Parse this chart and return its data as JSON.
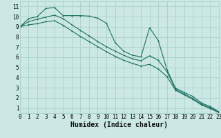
{
  "xlabel": "Humidex (Indice chaleur)",
  "background_color": "#cce8e4",
  "grid_color": "#aacfcb",
  "line_color": "#1a7060",
  "x_values": [
    0,
    1,
    2,
    3,
    4,
    5,
    6,
    7,
    8,
    9,
    10,
    11,
    12,
    13,
    14,
    15,
    16,
    17,
    18,
    19,
    20,
    21,
    22,
    23
  ],
  "line1": [
    9.0,
    9.8,
    10.0,
    10.8,
    10.9,
    10.1,
    10.1,
    10.1,
    10.05,
    9.85,
    9.35,
    7.45,
    6.6,
    6.2,
    6.05,
    8.9,
    7.65,
    4.8,
    2.95,
    2.55,
    2.15,
    1.5,
    1.15,
    0.65
  ],
  "line2": [
    9.0,
    9.5,
    9.75,
    9.95,
    10.15,
    9.8,
    9.2,
    8.65,
    8.1,
    7.55,
    7.05,
    6.6,
    6.2,
    5.85,
    5.65,
    6.15,
    5.7,
    4.6,
    2.85,
    2.4,
    1.95,
    1.4,
    1.05,
    0.6
  ],
  "line3": [
    9.0,
    9.2,
    9.3,
    9.5,
    9.6,
    9.15,
    8.6,
    8.05,
    7.55,
    7.05,
    6.55,
    6.1,
    5.7,
    5.4,
    5.15,
    5.3,
    4.85,
    4.1,
    2.75,
    2.3,
    1.85,
    1.3,
    0.95,
    0.55
  ],
  "xlim": [
    0,
    23
  ],
  "ylim": [
    0.5,
    11.5
  ],
  "yticks": [
    1,
    2,
    3,
    4,
    5,
    6,
    7,
    8,
    9,
    10,
    11
  ],
  "xticks": [
    0,
    1,
    2,
    3,
    4,
    5,
    6,
    7,
    8,
    9,
    10,
    11,
    12,
    13,
    14,
    15,
    16,
    17,
    18,
    19,
    20,
    21,
    22,
    23
  ],
  "xlabel_fontsize": 7,
  "tick_fontsize": 5.5,
  "linewidth": 0.8,
  "markersize": 2.0
}
